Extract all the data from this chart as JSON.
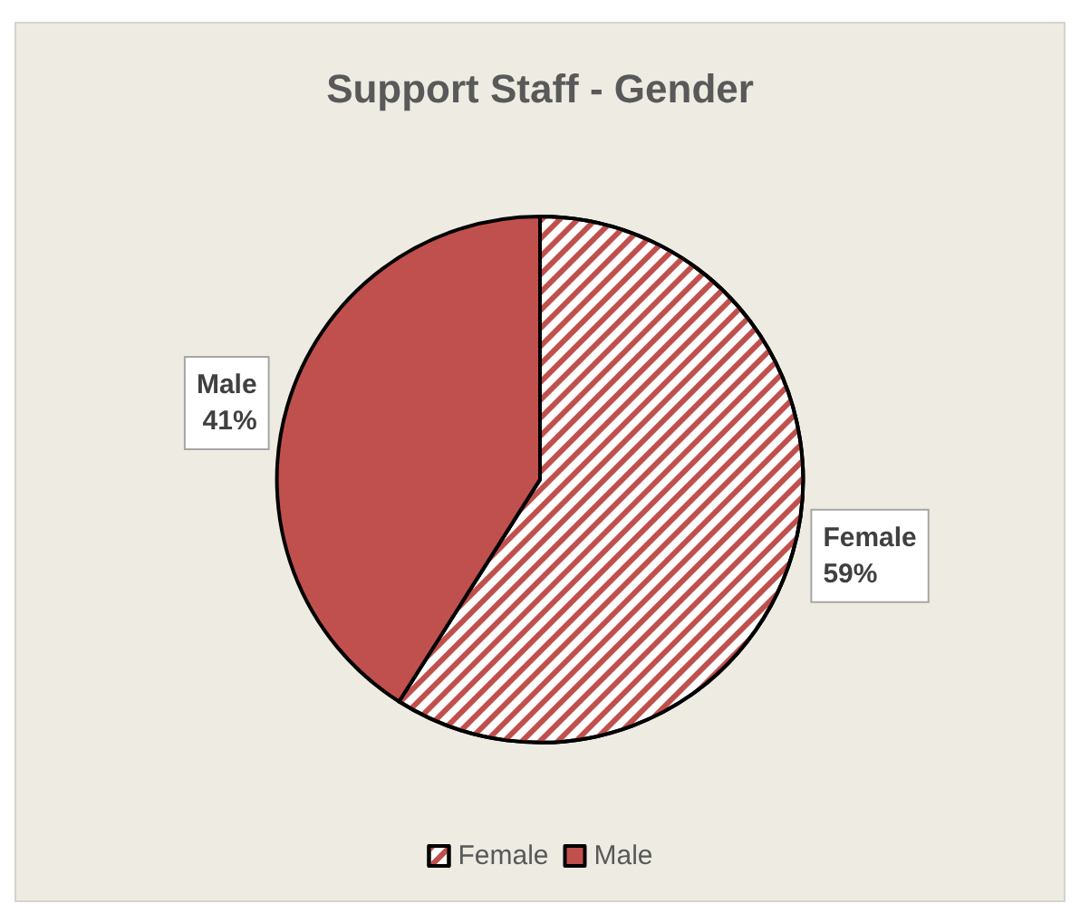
{
  "chart_data": {
    "type": "pie",
    "title": "Support Staff - Gender",
    "categories": [
      "Female",
      "Male"
    ],
    "values": [
      59,
      41
    ],
    "colors": [
      "#ffffff",
      "#c0504d"
    ],
    "value_labels": [
      "59%",
      "41%"
    ],
    "legend": "bottom"
  }
}
